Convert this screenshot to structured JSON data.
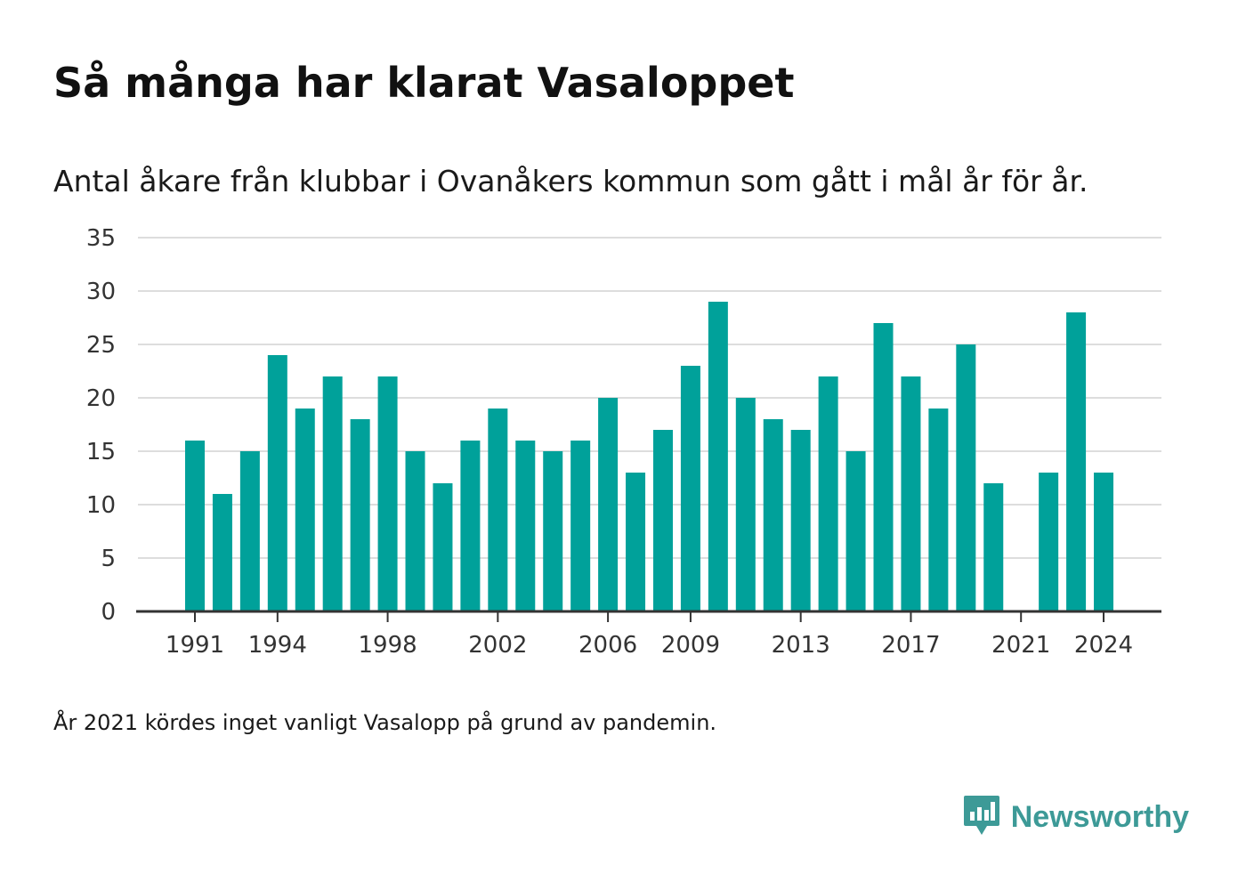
{
  "header": {
    "title": "Så många har klarat Vasaloppet",
    "subtitle": "Antal åkare från klubbar i Ovanåkers kommun som gått i mål år för år."
  },
  "footnote": "År 2021 kördes inget vanligt Vasalopp på grund av pandemin.",
  "brand": {
    "name": "Newsworthy",
    "icon": "newsworthy-logo-icon",
    "color": "#3d9a97"
  },
  "colors": {
    "bar": "#00a19a",
    "grid": "#dddddd",
    "axis": "#333333"
  },
  "chart_data": {
    "type": "bar",
    "title": "Så många har klarat Vasaloppet",
    "subtitle": "Antal åkare från klubbar i Ovanåkers kommun som gått i mål år för år.",
    "xlabel": "",
    "ylabel": "",
    "ylim": [
      0,
      35
    ],
    "yticks": [
      0,
      5,
      10,
      15,
      20,
      25,
      30,
      35
    ],
    "xtick_labels": [
      1991,
      1994,
      1998,
      2002,
      2006,
      2009,
      2013,
      2017,
      2021,
      2024
    ],
    "grid": true,
    "legend": "none",
    "categories": [
      1991,
      1992,
      1993,
      1994,
      1995,
      1996,
      1997,
      1998,
      1999,
      2000,
      2001,
      2002,
      2003,
      2004,
      2005,
      2006,
      2007,
      2008,
      2009,
      2010,
      2011,
      2012,
      2013,
      2014,
      2015,
      2016,
      2017,
      2018,
      2019,
      2020,
      2021,
      2022,
      2023,
      2024
    ],
    "values": [
      16,
      11,
      15,
      24,
      19,
      22,
      18,
      22,
      15,
      12,
      16,
      19,
      16,
      15,
      16,
      20,
      13,
      17,
      23,
      29,
      20,
      18,
      17,
      22,
      15,
      27,
      22,
      19,
      25,
      12,
      null,
      13,
      28,
      13
    ]
  }
}
